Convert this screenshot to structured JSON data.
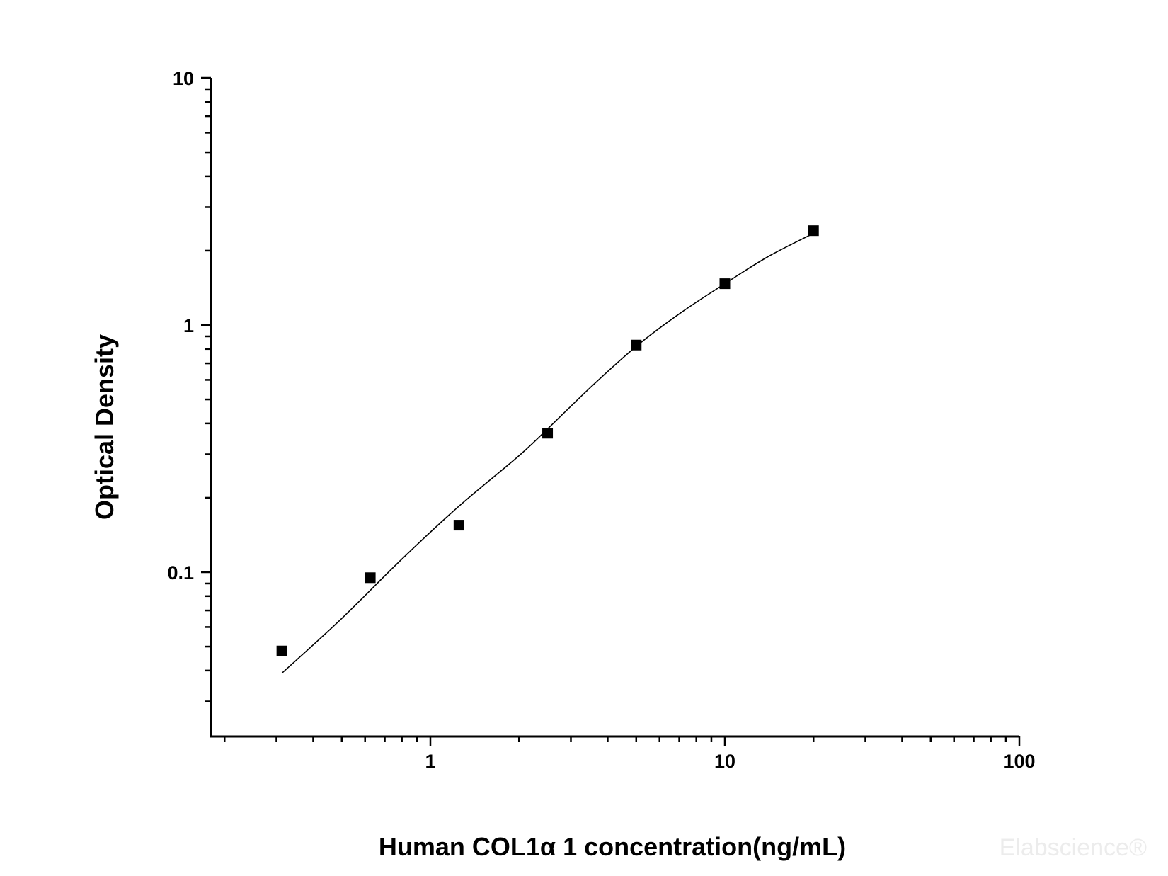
{
  "chart_data": {
    "type": "scatter",
    "title": "",
    "xlabel": "Human COL1α 1 concentration(ng/mL)",
    "ylabel": "Optical Density",
    "x_scale": "log",
    "y_scale": "log",
    "xlim": [
      0.2,
      100
    ],
    "ylim": [
      0.026,
      10
    ],
    "x_tick_labels": [
      {
        "value": 1,
        "label": "1"
      },
      {
        "value": 10,
        "label": "10"
      },
      {
        "value": 100,
        "label": "100"
      }
    ],
    "y_tick_labels": [
      {
        "value": 0.1,
        "label": "0.1"
      },
      {
        "value": 1,
        "label": "1"
      },
      {
        "value": 10,
        "label": "10"
      }
    ],
    "grid": false,
    "legend": "none",
    "series": [
      {
        "marker": "square",
        "x": [
          0.313,
          0.625,
          1.25,
          2.5,
          5,
          10,
          20
        ],
        "y": [
          0.048,
          0.095,
          0.155,
          0.365,
          0.83,
          1.47,
          2.41
        ]
      }
    ],
    "fit_curve": {
      "x": [
        0.313,
        0.5,
        0.8,
        1.25,
        2,
        2.5,
        3.5,
        5,
        7,
        10,
        14,
        20
      ],
      "y": [
        0.039,
        0.065,
        0.113,
        0.185,
        0.296,
        0.38,
        0.56,
        0.82,
        1.11,
        1.47,
        1.89,
        2.35
      ]
    },
    "colors": {
      "axis": "#000000",
      "marker": "#000000",
      "curve": "#000000"
    }
  },
  "watermark": "Elabscience®"
}
